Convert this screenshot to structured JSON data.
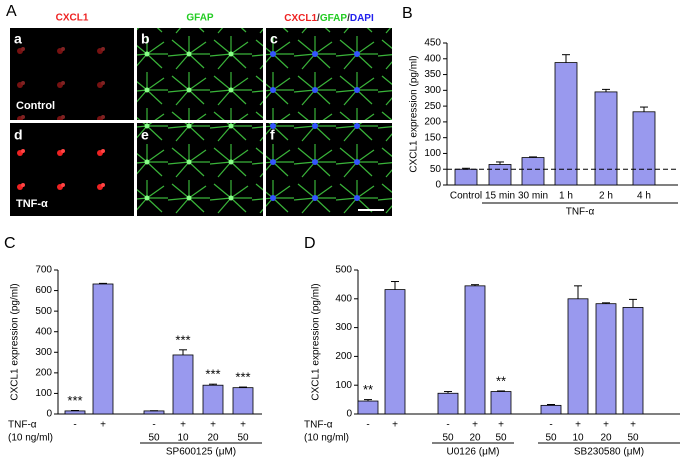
{
  "panel_a": {
    "column_labels": [
      "CXCL1",
      "GFAP"
    ],
    "merge_label": [
      "CXCL1",
      "/",
      "GFAP",
      "/",
      "DAPI"
    ],
    "image_letters": [
      "a",
      "b",
      "c",
      "d",
      "e",
      "f"
    ],
    "row_labels": [
      "Control",
      "TNF-α"
    ]
  },
  "panel_letters": [
    "A",
    "B",
    "C",
    "D"
  ],
  "chart_data": [
    {
      "type": "bar",
      "y_label": "CXCL1 expression (pg/ml)",
      "color": "#9999ee",
      "categories": [
        "Control",
        "15 min",
        "30 min",
        "1 h",
        "2 h",
        "4 h"
      ],
      "values": [
        50,
        65,
        87,
        388,
        295,
        232
      ],
      "errors": [
        3,
        8,
        2,
        25,
        8,
        15
      ],
      "reference_line": 50,
      "group_labels": [
        "TNF-α"
      ],
      "ylim": [
        0,
        450
      ],
      "yticks": [
        0,
        50,
        100,
        150,
        200,
        250,
        300,
        350,
        400,
        450
      ]
    },
    {
      "type": "bar",
      "y_label": "CXCL1 expression (pg/ml)",
      "color": "#9999ee",
      "row_labels": [
        "TNF-α",
        "(10 ng/ml)"
      ],
      "categories": [
        "-",
        "+",
        "-",
        "+",
        "+",
        "+"
      ],
      "doses": [
        null,
        null,
        "50",
        "10",
        "20",
        "50"
      ],
      "values": [
        15,
        632,
        15,
        287,
        140,
        128
      ],
      "errors": [
        2,
        3,
        1,
        25,
        5,
        3
      ],
      "significance": [
        "***",
        null,
        null,
        "***",
        "***",
        "***"
      ],
      "group_labels": [
        "SP600125 (μM)"
      ],
      "ylim": [
        0,
        700
      ],
      "yticks": [
        0,
        100,
        200,
        300,
        400,
        500,
        600,
        700
      ]
    },
    {
      "type": "bar",
      "y_label": "CXCL1 expression (pg/ml)",
      "color": "#9999ee",
      "row_labels": [
        "TNF-α",
        "(10 ng/ml)"
      ],
      "categories": [
        "-",
        "+",
        "-",
        "+",
        "+",
        "-",
        "+",
        "+",
        "+"
      ],
      "doses": [
        null,
        null,
        "50",
        "20",
        "50",
        "50",
        "10",
        "20",
        "50"
      ],
      "values": [
        45,
        432,
        72,
        445,
        78,
        30,
        400,
        383,
        370
      ],
      "errors": [
        5,
        28,
        6,
        4,
        2,
        3,
        45,
        3,
        28
      ],
      "significance": [
        "**",
        null,
        null,
        null,
        "**",
        null,
        null,
        null,
        null
      ],
      "group_labels": [
        "U0126 (μM)",
        "SB230580 (μM)"
      ],
      "ylim": [
        0,
        500
      ],
      "yticks": [
        0,
        100,
        200,
        300,
        400,
        500
      ]
    }
  ]
}
